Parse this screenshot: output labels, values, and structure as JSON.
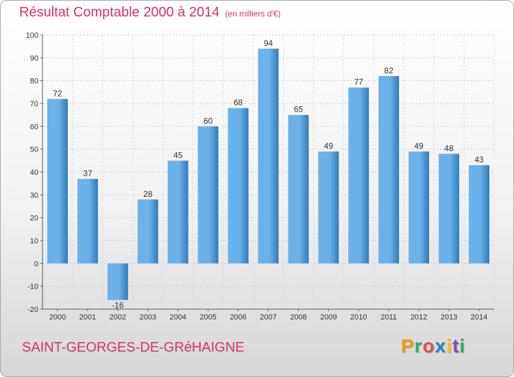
{
  "header": {
    "title": "Résultat Comptable 2000 à 2014",
    "unit": "(en milliers d'€)"
  },
  "footer": {
    "commune": "SAINT-GEORGES-DE-GRéHAIGNE",
    "logo": [
      "P",
      "r",
      "o",
      "x",
      "i",
      "t",
      "i"
    ]
  },
  "colors": {
    "title": "#d9316b",
    "bar_light": "#6cb2ea",
    "bar_dark": "#2e7cbb",
    "logo": [
      "#f39c12",
      "#27ae60",
      "#e74c3c",
      "#2980b9",
      "#f1c40f",
      "#8e44ad",
      "#27ae60"
    ]
  },
  "chart_data": {
    "type": "bar",
    "title": "Résultat Comptable 2000 à 2014",
    "xlabel": "",
    "ylabel": "",
    "ylim": [
      -20,
      100
    ],
    "yticks": [
      100,
      90,
      80,
      70,
      60,
      50,
      40,
      30,
      20,
      10,
      0,
      -10,
      -20
    ],
    "grid": true,
    "categories": [
      "2000",
      "2001",
      "2002",
      "2003",
      "2004",
      "2005",
      "2006",
      "2007",
      "2008",
      "2009",
      "2010",
      "2011",
      "2012",
      "2013",
      "2014"
    ],
    "values": [
      72,
      37,
      -16,
      28,
      45,
      60,
      68,
      94,
      65,
      49,
      77,
      82,
      49,
      48,
      43
    ],
    "value_labels": [
      "72",
      "37",
      "-16",
      "28",
      "45",
      "60",
      "68",
      "94",
      "65",
      "49",
      "77",
      "82",
      "49",
      "48",
      "43"
    ]
  }
}
